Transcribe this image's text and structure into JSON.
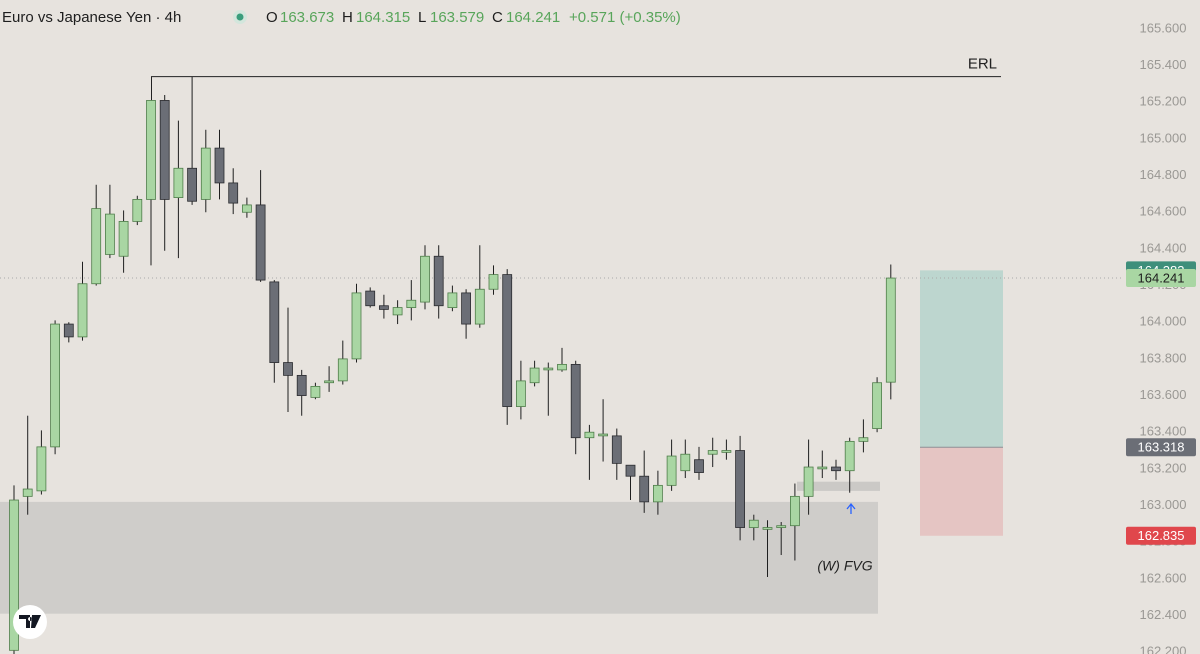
{
  "chart_data": {
    "type": "candlestick",
    "title": "Euro vs Japanese Yen · 4h",
    "ohlc_labels": [
      "O",
      "H",
      "L",
      "C"
    ],
    "change_label": "+0.571 (+0.35%)",
    "open": [
      162.21,
      163.05,
      163.08,
      163.32,
      163.99,
      163.92,
      164.21,
      164.37,
      164.36,
      164.55,
      164.67,
      165.21,
      164.68,
      164.84,
      164.67,
      164.95,
      164.76,
      164.6,
      164.64,
      164.22,
      163.78,
      163.71,
      163.59,
      163.67,
      163.68,
      163.8,
      164.17,
      164.09,
      164.04,
      164.08,
      164.11,
      164.36,
      164.08,
      164.16,
      163.99,
      164.18,
      164.26,
      163.54,
      163.67,
      163.74,
      163.74,
      163.77,
      163.37,
      163.38,
      163.38,
      163.22,
      163.16,
      163.02,
      163.11,
      163.19,
      163.25,
      163.28,
      163.29,
      163.3,
      162.88,
      162.87,
      162.88,
      162.89,
      163.05,
      163.2,
      163.21,
      163.19,
      163.35,
      163.42,
      163.673
    ],
    "high": [
      163.11,
      163.49,
      163.41,
      164.01,
      164.0,
      164.33,
      164.75,
      164.75,
      164.61,
      164.69,
      165.21,
      165.24,
      165.1,
      165.34,
      165.05,
      165.05,
      164.84,
      164.68,
      164.83,
      164.23,
      164.08,
      163.74,
      163.67,
      163.76,
      163.9,
      164.21,
      164.19,
      164.15,
      164.12,
      164.23,
      164.42,
      164.42,
      164.2,
      164.18,
      164.42,
      164.31,
      164.29,
      163.79,
      163.79,
      163.78,
      163.86,
      163.79,
      163.44,
      163.58,
      163.42,
      163.22,
      163.3,
      163.19,
      163.36,
      163.36,
      163.32,
      163.37,
      163.36,
      163.38,
      162.95,
      162.92,
      162.91,
      163.12,
      163.36,
      163.3,
      163.25,
      163.37,
      163.47,
      163.7,
      164.315
    ],
    "low": [
      162.19,
      162.95,
      163.06,
      163.28,
      163.89,
      163.9,
      164.2,
      164.35,
      164.27,
      164.53,
      164.31,
      164.39,
      164.35,
      164.64,
      164.6,
      164.67,
      164.59,
      164.57,
      164.22,
      163.67,
      163.51,
      163.49,
      163.58,
      163.62,
      163.66,
      163.78,
      164.08,
      164.02,
      163.99,
      164.01,
      164.07,
      164.02,
      164.06,
      163.91,
      163.97,
      164.15,
      163.44,
      163.47,
      163.65,
      163.49,
      163.73,
      163.28,
      163.14,
      163.24,
      163.14,
      163.03,
      162.96,
      162.95,
      163.08,
      163.15,
      163.14,
      163.21,
      163.25,
      162.81,
      162.81,
      162.61,
      162.73,
      162.7,
      162.95,
      163.15,
      163.14,
      163.07,
      163.29,
      163.4,
      163.579
    ],
    "close": [
      163.03,
      163.09,
      163.32,
      163.99,
      163.92,
      164.21,
      164.62,
      164.59,
      164.55,
      164.67,
      165.21,
      164.67,
      164.84,
      164.66,
      164.95,
      164.76,
      164.65,
      164.64,
      164.23,
      163.78,
      163.71,
      163.6,
      163.65,
      163.68,
      163.8,
      164.16,
      164.09,
      164.07,
      164.08,
      164.12,
      164.36,
      164.09,
      164.16,
      163.99,
      164.18,
      164.26,
      163.54,
      163.68,
      163.75,
      163.75,
      163.77,
      163.37,
      163.4,
      163.39,
      163.23,
      163.16,
      163.02,
      163.11,
      163.27,
      163.28,
      163.18,
      163.3,
      163.3,
      162.88,
      162.92,
      162.88,
      162.89,
      163.05,
      163.21,
      163.21,
      163.19,
      163.35,
      163.37,
      163.67,
      164.241
    ],
    "up_color": "#a9d6a3",
    "down_color": "#6b6e76",
    "ylim": [
      162.19,
      165.758
    ],
    "yticks": [
      {
        "value": 162.2,
        "label": "162.200"
      },
      {
        "value": 162.4,
        "label": "162.400"
      },
      {
        "value": 162.6,
        "label": "162.600"
      },
      {
        "value": 162.8,
        "label": "162.800"
      },
      {
        "value": 163.0,
        "label": "163.000"
      },
      {
        "value": 163.2,
        "label": "163.200"
      },
      {
        "value": 163.4,
        "label": "163.400"
      },
      {
        "value": 163.6,
        "label": "163.600"
      },
      {
        "value": 163.8,
        "label": "163.800"
      },
      {
        "value": 164.0,
        "label": "164.000"
      },
      {
        "value": 164.2,
        "label": "164.200"
      },
      {
        "value": 164.4,
        "label": "164.400"
      },
      {
        "value": 164.6,
        "label": "164.600"
      },
      {
        "value": 164.8,
        "label": "164.800"
      },
      {
        "value": 165.0,
        "label": "165.000"
      },
      {
        "value": 165.2,
        "label": "165.200"
      },
      {
        "value": 165.4,
        "label": "165.400"
      },
      {
        "value": 165.6,
        "label": "165.600"
      }
    ],
    "levels": [
      {
        "label": "ERL",
        "value": 165.34
      }
    ],
    "zones": [
      {
        "label": "(W) FVG",
        "ylim": [
          162.41,
          163.02
        ]
      },
      {
        "ylim": [
          163.08,
          163.13
        ]
      }
    ],
    "position": {
      "target": 164.283,
      "entry": 163.318,
      "stop": 162.835,
      "target_color": "#3e8f7b",
      "entry_color": "#6b6e76",
      "stop_color": "#e0474c"
    }
  }
}
